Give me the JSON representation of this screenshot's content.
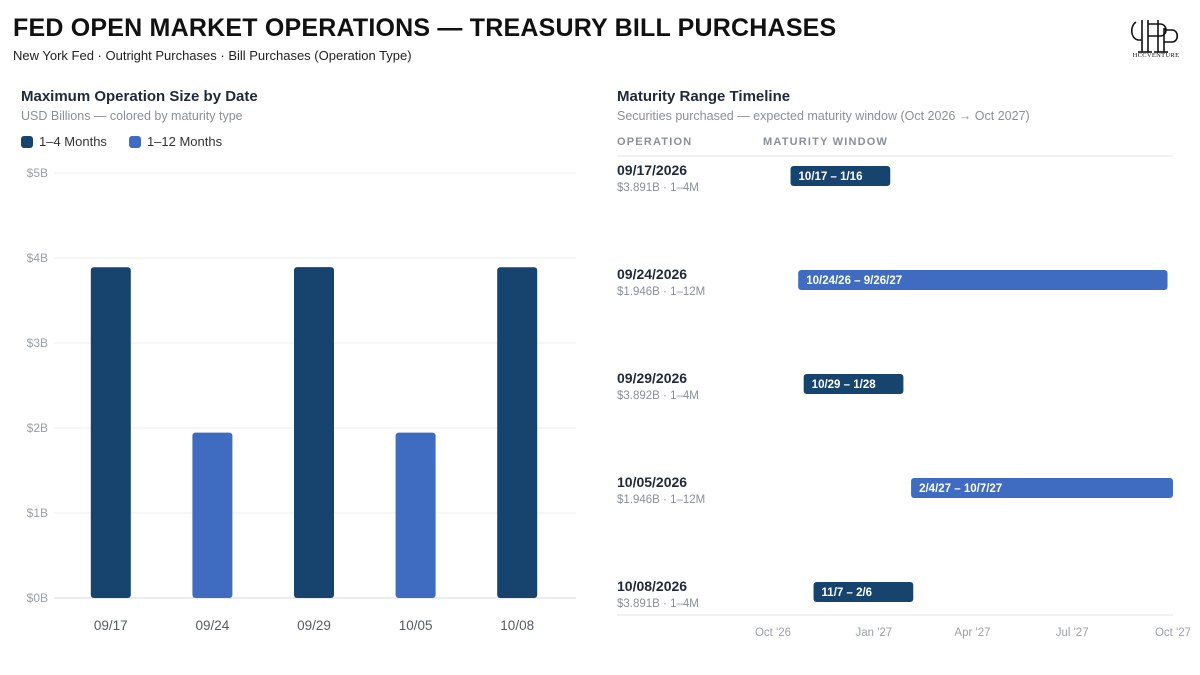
{
  "header": {
    "title": "FED OPEN MARKET OPERATIONS — TREASURY BILL PURCHASES",
    "subtitle": "New York Fed · Outright Purchases · Bill Purchases (Operation Type)",
    "logo_text": "HCCVENTURE"
  },
  "colors": {
    "short": "#17446e",
    "long": "#3f6cc0"
  },
  "chart_data": [
    {
      "type": "bar",
      "title": "Maximum Operation Size by Date",
      "subtitle": "USD Billions — colored by maturity type",
      "categories": [
        "09/17",
        "09/24",
        "09/29",
        "10/05",
        "10/08"
      ],
      "values": [
        3.891,
        1.946,
        3.892,
        1.946,
        3.891
      ],
      "colors_by_bar": [
        "short",
        "long",
        "short",
        "long",
        "short"
      ],
      "legend": [
        {
          "label": "1–4 Months",
          "color": "short"
        },
        {
          "label": "1–12 Months",
          "color": "long"
        }
      ],
      "ylim": [
        0,
        5
      ],
      "yticks": [
        0,
        1,
        2,
        3,
        4,
        5
      ],
      "ytick_labels": [
        "$0B",
        "$1B",
        "$2B",
        "$3B",
        "$4B",
        "$5B"
      ],
      "grid": true
    },
    {
      "type": "table",
      "title": "Maturity Range Timeline",
      "subtitle": "Securities purchased — expected maturity window (Oct 2026 → Oct 2027)",
      "columns": [
        "OPERATION",
        "MATURITY WINDOW"
      ],
      "x_axis": {
        "start": "2026-10-01",
        "end": "2027-10-01",
        "ticks": [
          {
            "date": "2026-10-01",
            "label": "Oct '26"
          },
          {
            "date": "2027-01-01",
            "label": "Jan '27"
          },
          {
            "date": "2027-04-01",
            "label": "Apr '27"
          },
          {
            "date": "2027-07-01",
            "label": "Jul '27"
          },
          {
            "date": "2027-10-01",
            "label": "Oct '27"
          }
        ]
      },
      "rows": [
        {
          "date": "09/17/2026",
          "detail": "$3.891B · 1–4M",
          "label": "10/17 – 1/16",
          "start": "2026-10-17",
          "end": "2027-01-16",
          "color": "short"
        },
        {
          "date": "09/24/2026",
          "detail": "$1.946B · 1–12M",
          "label": "10/24/26 – 9/26/27",
          "start": "2026-10-24",
          "end": "2027-09-26",
          "color": "long"
        },
        {
          "date": "09/29/2026",
          "detail": "$3.892B · 1–4M",
          "label": "10/29 – 1/28",
          "start": "2026-10-29",
          "end": "2027-01-28",
          "color": "short"
        },
        {
          "date": "10/05/2026",
          "detail": "$1.946B · 1–12M",
          "label": "2/4/27 – 10/7/27",
          "start": "2027-02-04",
          "end": "2027-10-07",
          "color": "long"
        },
        {
          "date": "10/08/2026",
          "detail": "$3.891B · 1–4M",
          "label": "11/7 – 2/6",
          "start": "2026-11-07",
          "end": "2027-02-06",
          "color": "short"
        }
      ]
    }
  ]
}
